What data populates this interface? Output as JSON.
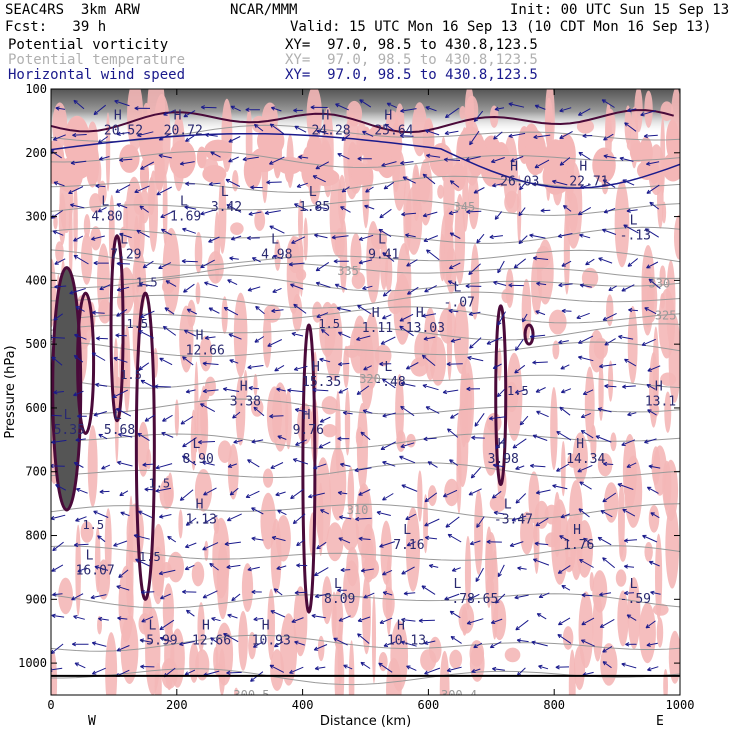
{
  "header": {
    "model": "SEAC4RS  3km ARW",
    "org": "NCAR/MMM",
    "init": "Init: 00 UTC Sun 15 Sep 13",
    "fcst": "Fcst:   39 h",
    "valid": "Valid: 15 UTC Mon 16 Sep 13 (10 CDT Mon 16 Sep 13)",
    "fields": [
      {
        "name": "Potential vorticity",
        "xy": "XY=  97.0, 98.5 to 430.8,123.5",
        "color": "#000000"
      },
      {
        "name": "Potential temperature",
        "xy": "XY=  97.0, 98.5 to 430.8,123.5",
        "color": "#b0b0b0"
      },
      {
        "name": "Horizontal wind speed",
        "xy": "XY=  97.0, 98.5 to 430.8,123.5",
        "color": "#1a1a8c"
      }
    ]
  },
  "colors": {
    "pv_fill": "#f4b7b7",
    "pv_contour": "#4a0a3a",
    "theta": "#9a9a9a",
    "wind": "#1a1a8c",
    "frame": "#000000"
  },
  "chart_data": {
    "type": "cross-section",
    "xlabel": "Distance (km)",
    "ylabel": "Pressure (hPa)",
    "xlim": [
      0,
      1000
    ],
    "ylim": [
      100,
      1050
    ],
    "x_ticks": [
      "0",
      "200",
      "400",
      "600",
      "800",
      "1000"
    ],
    "y_ticks": [
      "100",
      "200",
      "300",
      "400",
      "500",
      "600",
      "700",
      "800",
      "900",
      "1000"
    ],
    "x_end_labels": {
      "left": "W",
      "right": "E"
    },
    "theta_contours": [
      {
        "value": "345",
        "x": 640,
        "p": 285
      },
      {
        "value": "335",
        "x": 455,
        "p": 385
      },
      {
        "value": "330",
        "x": 950,
        "p": 405
      },
      {
        "value": "325",
        "x": 960,
        "p": 455
      },
      {
        "value": "320",
        "x": 490,
        "p": 555
      },
      {
        "value": "310",
        "x": 470,
        "p": 760
      },
      {
        "value": "300.5",
        "x": 290,
        "p": 1050
      },
      {
        "value": "300.4",
        "x": 620,
        "p": 1050
      }
    ],
    "extrema": [
      {
        "type": "H",
        "value": "20.52",
        "x": 100,
        "p": 160
      },
      {
        "type": "H",
        "value": "20.72",
        "x": 195,
        "p": 160
      },
      {
        "type": "H",
        "value": "24.28",
        "x": 430,
        "p": 160
      },
      {
        "type": "H",
        "value": "25.64",
        "x": 530,
        "p": 160
      },
      {
        "type": "H",
        "value": "26.03",
        "x": 730,
        "p": 240
      },
      {
        "type": "H",
        "value": "22.71",
        "x": 840,
        "p": 240
      },
      {
        "type": "L",
        "value": "4.80",
        "x": 80,
        "p": 295
      },
      {
        "type": "L",
        "value": "1.69",
        "x": 205,
        "p": 295
      },
      {
        "type": "L",
        "value": "3.42",
        "x": 270,
        "p": 280
      },
      {
        "type": "L",
        "value": "1.85",
        "x": 410,
        "p": 280
      },
      {
        "type": "L",
        "value": "-.13",
        "x": 920,
        "p": 325
      },
      {
        "type": "L",
        "value": "7.29",
        "x": 110,
        "p": 355
      },
      {
        "type": "L",
        "value": "4.98",
        "x": 350,
        "p": 355
      },
      {
        "type": "L",
        "value": "9.41",
        "x": 520,
        "p": 355
      },
      {
        "type": "L",
        "value": "-.07",
        "x": 640,
        "p": 430
      },
      {
        "type": "H",
        "value": "1.11",
        "x": 510,
        "p": 470
      },
      {
        "type": "H",
        "value": "13.03",
        "x": 580,
        "p": 470
      },
      {
        "type": "H",
        "value": "12.66",
        "x": 230,
        "p": 505
      },
      {
        "type": "H",
        "value": "15.35",
        "x": 415,
        "p": 555
      },
      {
        "type": "L",
        "value": "-.48",
        "x": 530,
        "p": 555
      },
      {
        "type": "H",
        "value": "3.38",
        "x": 300,
        "p": 585
      },
      {
        "type": "H",
        "value": "13.1",
        "x": 960,
        "p": 585
      },
      {
        "type": "L",
        "value": "5.68",
        "x": 100,
        "p": 630
      },
      {
        "type": "H",
        "value": "9.76",
        "x": 400,
        "p": 630
      },
      {
        "type": "L",
        "value": "5.35",
        "x": 20,
        "p": 630
      },
      {
        "type": "L",
        "value": "8.90",
        "x": 225,
        "p": 675
      },
      {
        "type": "H",
        "value": "3.98",
        "x": 710,
        "p": 675
      },
      {
        "type": "H",
        "value": "14.34",
        "x": 835,
        "p": 675
      },
      {
        "type": "H",
        "value": "1.13",
        "x": 230,
        "p": 770
      },
      {
        "type": "L",
        "value": "-3.47",
        "x": 720,
        "p": 770
      },
      {
        "type": "L",
        "value": "7.16",
        "x": 560,
        "p": 810
      },
      {
        "type": "H",
        "value": "1.76",
        "x": 830,
        "p": 810
      },
      {
        "type": "L",
        "value": "16.07",
        "x": 55,
        "p": 850
      },
      {
        "type": "L",
        "value": "8.09",
        "x": 450,
        "p": 895
      },
      {
        "type": "L",
        "value": "-.78.65",
        "x": 640,
        "p": 895
      },
      {
        "type": "L",
        "value": "-.59",
        "x": 920,
        "p": 895
      },
      {
        "type": "L",
        "value": "-5.99",
        "x": 155,
        "p": 960
      },
      {
        "type": "H",
        "value": "12.66",
        "x": 240,
        "p": 960
      },
      {
        "type": "H",
        "value": "10.93",
        "x": 335,
        "p": 960
      },
      {
        "type": "H",
        "value": "10.13",
        "x": 550,
        "p": 960
      }
    ],
    "pv_contour_labels": [
      {
        "value": "1.5",
        "x": 135,
        "p": 410
      },
      {
        "value": "1.5",
        "x": 120,
        "p": 475
      },
      {
        "value": "1.5",
        "x": 425,
        "p": 475
      },
      {
        "value": "1.5",
        "x": 110,
        "p": 555
      },
      {
        "value": "1.5",
        "x": 155,
        "p": 725
      },
      {
        "value": "1.5",
        "x": 50,
        "p": 790
      },
      {
        "value": "1.5",
        "x": 140,
        "p": 840
      },
      {
        "value": "1.5",
        "x": 725,
        "p": 580
      }
    ]
  }
}
